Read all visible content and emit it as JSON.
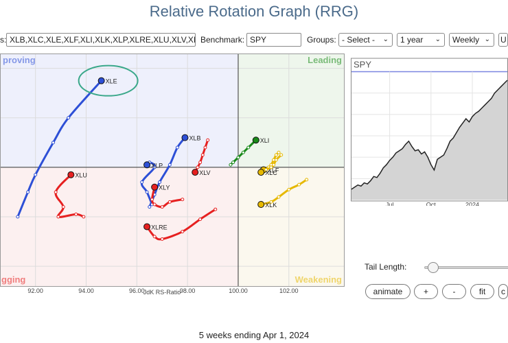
{
  "page": {
    "title": "Relative Rotation Graph (RRG)",
    "footer": "5 weeks ending Apr 1, 2024"
  },
  "controls": {
    "symbols_label": "s:",
    "symbols_value": "XLB,XLC,XLE,XLF,XLI,XLK,XLP,XLRE,XLU,XLV,XL",
    "benchmark_label": "Benchmark:",
    "benchmark_value": "SPY",
    "groups_label": "Groups:",
    "groups_value": "- Select -",
    "period_value": "1 year",
    "frequency_value": "Weekly",
    "cut_button": "U"
  },
  "bottom_controls": {
    "tail_length_label": "Tail Length:",
    "tail_length_value": 0.05,
    "animate": "animate",
    "plus": "+",
    "minus": "-",
    "fit": "fit",
    "extra": "c"
  },
  "colors": {
    "lagging": "#e62020",
    "improving": "#2d4fd6",
    "leading": "#1a8a1a",
    "weakening": "#e6b800",
    "highlight": "#3aa88a"
  },
  "chart_data": [
    {
      "type": "scatter",
      "chart": "rrg",
      "xlabel": "JdK RS-Ratio",
      "ylabel": "",
      "xlim": [
        90.6,
        104.2
      ],
      "ylim": [
        95.2,
        104.6
      ],
      "center": [
        100,
        100
      ],
      "xticks": [
        92,
        94,
        96,
        98,
        100,
        102
      ],
      "xtick_labels": [
        "92.00",
        "94.00",
        "96.00",
        "98.00",
        "100.00",
        "102.00"
      ],
      "grid": true,
      "quadrants": {
        "improving": "proving",
        "leading": "Leading",
        "lagging": "gging",
        "weakening": "Weakening"
      },
      "series": [
        {
          "name": "XLE",
          "color": "#2d4fd6",
          "x": [
            91.3,
            91.7,
            92.0,
            92.7,
            93.3,
            94.6
          ],
          "y": [
            98.0,
            99.0,
            99.7,
            101.0,
            102.0,
            103.5
          ]
        },
        {
          "name": "XLB",
          "color": "#2d4fd6",
          "x": [
            96.5,
            96.7,
            96.9,
            97.3,
            97.6,
            97.9
          ],
          "y": [
            98.4,
            98.9,
            99.4,
            100.1,
            100.8,
            101.2
          ]
        },
        {
          "name": "XLP",
          "color": "#2d4fd6",
          "x": [
            96.6,
            96.4,
            96.2,
            96.7,
            96.5,
            96.4
          ],
          "y": [
            98.5,
            99.0,
            99.4,
            100.0,
            100.2,
            100.1
          ]
        },
        {
          "name": "XLI",
          "color": "#1a8a1a",
          "x": [
            99.7,
            99.8,
            100.0,
            100.2,
            100.4,
            100.7
          ],
          "y": [
            100.1,
            100.2,
            100.4,
            100.6,
            100.8,
            101.1
          ]
        },
        {
          "name": "XLU",
          "color": "#e62020",
          "x": [
            93.9,
            93.6,
            92.9,
            93.1,
            92.8,
            93.4
          ],
          "y": [
            98.0,
            98.1,
            98.0,
            98.4,
            99.0,
            99.7
          ]
        },
        {
          "name": "XLY",
          "color": "#e62020",
          "x": [
            97.8,
            97.3,
            97.0,
            96.7,
            96.6,
            96.7
          ],
          "y": [
            98.7,
            98.6,
            98.4,
            98.5,
            98.7,
            99.2
          ]
        },
        {
          "name": "XLV",
          "color": "#e62020",
          "x": [
            98.8,
            98.7,
            98.6,
            98.5,
            98.4,
            98.3
          ],
          "y": [
            101.1,
            100.8,
            100.5,
            100.2,
            100.0,
            99.8
          ]
        },
        {
          "name": "XLRE",
          "color": "#e62020",
          "x": [
            99.1,
            98.5,
            97.8,
            97.0,
            96.7,
            96.4
          ],
          "y": [
            98.3,
            97.9,
            97.4,
            97.1,
            97.2,
            97.6
          ]
        },
        {
          "name": "XLF",
          "color": "#e6b800",
          "x": [
            101.6,
            101.5,
            101.4,
            101.3,
            101.2,
            101.0
          ],
          "y": [
            100.6,
            100.5,
            100.3,
            100.1,
            100.0,
            99.9
          ]
        },
        {
          "name": "XLC",
          "color": "#e6b800",
          "x": [
            101.7,
            101.5,
            101.4,
            101.3,
            101.1,
            100.9
          ],
          "y": [
            100.5,
            100.3,
            100.1,
            100.0,
            99.9,
            99.8
          ]
        },
        {
          "name": "XLK",
          "color": "#e6b800",
          "x": [
            102.7,
            102.4,
            102.0,
            101.6,
            101.3,
            100.9
          ],
          "y": [
            99.5,
            99.3,
            99.1,
            98.8,
            98.6,
            98.5
          ]
        }
      ],
      "annotation": {
        "type": "ellipse",
        "target": "XLE"
      }
    },
    {
      "type": "area",
      "chart": "benchmark",
      "title": "SPY",
      "x_labels": [
        "Jul",
        "Oct",
        "2024"
      ],
      "x_label_positions": [
        12,
        25,
        38
      ],
      "values": [
        410,
        412,
        414,
        413,
        416,
        415,
        418,
        422,
        421,
        425,
        430,
        433,
        437,
        440,
        444,
        446,
        448,
        452,
        455,
        450,
        446,
        447,
        443,
        445,
        440,
        433,
        428,
        438,
        440,
        442,
        448,
        455,
        458,
        463,
        468,
        472,
        476,
        473,
        478,
        481,
        483,
        486,
        489,
        492,
        495,
        500,
        503,
        506,
        509,
        512
      ],
      "ylim": [
        400,
        520
      ]
    }
  ]
}
